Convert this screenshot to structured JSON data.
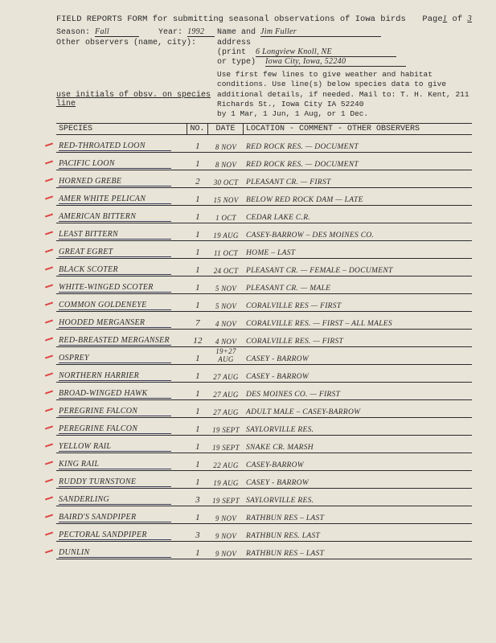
{
  "header": {
    "title": "FIELD REPORTS FORM for submitting seasonal observations of Iowa birds",
    "page_label": "Page",
    "page_cur": "1",
    "page_of": "of",
    "page_total": "3",
    "season_label": "Season:",
    "season": "Fall",
    "year_label": "Year:",
    "year": "1992",
    "name_label": "Name and",
    "name": "Jim Fuller",
    "other_obs_label": "Other observers (name, city):",
    "addr_label1": "address",
    "addr_label2": "(print",
    "addr_label3": "or type)",
    "addr1": "6 Longview Knoll, NE",
    "addr2": "Iowa City, Iowa, 52240",
    "instructions": "Use first few lines to give weather and habitat conditions. Use line(s) below species data to give additional details, if needed. Mail to: T. H. Kent, 211 Richards St., Iowa City IA 52240",
    "initials_note": "use initials of obsv. on species line",
    "deadline": "by 1 Mar, 1 Jun, 1 Aug, or 1 Dec."
  },
  "cols": {
    "species": "SPECIES",
    "no": "NO.",
    "date": "DATE",
    "loc": "LOCATION - COMMENT - OTHER OBSERVERS"
  },
  "rows": [
    {
      "sp": "Red-Throated Loon",
      "no": "1",
      "dt": "8 Nov",
      "loc": "Red Rock Res. — Document"
    },
    {
      "sp": "Pacific Loon",
      "no": "1",
      "dt": "8 Nov",
      "loc": "Red Rock Res. — Document"
    },
    {
      "sp": "Horned Grebe",
      "no": "2",
      "dt": "30 Oct",
      "loc": "Pleasant Cr. — First"
    },
    {
      "sp": "Amer White Pelican",
      "no": "1",
      "dt": "15 Nov",
      "loc": "Below Red Rock Dam — Late"
    },
    {
      "sp": "American Bittern",
      "no": "1",
      "dt": "1 Oct",
      "loc": "Cedar Lake C.R."
    },
    {
      "sp": "Least Bittern",
      "no": "1",
      "dt": "19 Aug",
      "loc": "Casey-Barrow – Des Moines Co."
    },
    {
      "sp": "Great Egret",
      "no": "1",
      "dt": "11 Oct",
      "loc": "Home – Last"
    },
    {
      "sp": "Black Scoter",
      "no": "1",
      "dt": "24 Oct",
      "loc": "Pleasant Cr. — Female – Document"
    },
    {
      "sp": "White-Winged Scoter",
      "no": "1",
      "dt": "5 Nov",
      "loc": "Pleasant Cr. — Male"
    },
    {
      "sp": "Common Goldeneye",
      "no": "1",
      "dt": "5 Nov",
      "loc": "Coralville Res — First"
    },
    {
      "sp": "Hooded Merganser",
      "no": "7",
      "dt": "4 Nov",
      "loc": "Coralville Res. — First – All Males"
    },
    {
      "sp": "Red-Breasted Merganser",
      "no": "12",
      "dt": "4 Nov",
      "loc": "Coralville Res. — First"
    },
    {
      "sp": "Osprey",
      "no": "1",
      "dt": "19+27 Aug",
      "loc": "Casey - Barrow"
    },
    {
      "sp": "Northern Harrier",
      "no": "1",
      "dt": "27 Aug",
      "loc": "Casey - Barrow"
    },
    {
      "sp": "Broad-Winged Hawk",
      "no": "1",
      "dt": "27 Aug",
      "loc": "Des Moines Co. — First"
    },
    {
      "sp": "Peregrine Falcon",
      "no": "1",
      "dt": "27 Aug",
      "loc": "Adult Male – Casey-Barrow"
    },
    {
      "sp": "Peregrine Falcon",
      "no": "1",
      "dt": "19 Sept",
      "loc": "Saylorville Res."
    },
    {
      "sp": "Yellow Rail",
      "no": "1",
      "dt": "19 Sept",
      "loc": "Snake Cr. Marsh"
    },
    {
      "sp": "King Rail",
      "no": "1",
      "dt": "22 Aug",
      "loc": "Casey-Barrow"
    },
    {
      "sp": "Ruddy Turnstone",
      "no": "1",
      "dt": "19 Aug",
      "loc": "Casey - Barrow"
    },
    {
      "sp": "Sanderling",
      "no": "3",
      "dt": "19 Sept",
      "loc": "Saylorville Res."
    },
    {
      "sp": "Baird's Sandpiper",
      "no": "1",
      "dt": "9 Nov",
      "loc": "Rathbun Res – Last"
    },
    {
      "sp": "Pectoral Sandpiper",
      "no": "3",
      "dt": "9 Nov",
      "loc": "Rathbun Res. Last"
    },
    {
      "sp": "Dunlin",
      "no": "1",
      "dt": "9 Nov",
      "loc": "Rathbun Res – Last"
    }
  ]
}
